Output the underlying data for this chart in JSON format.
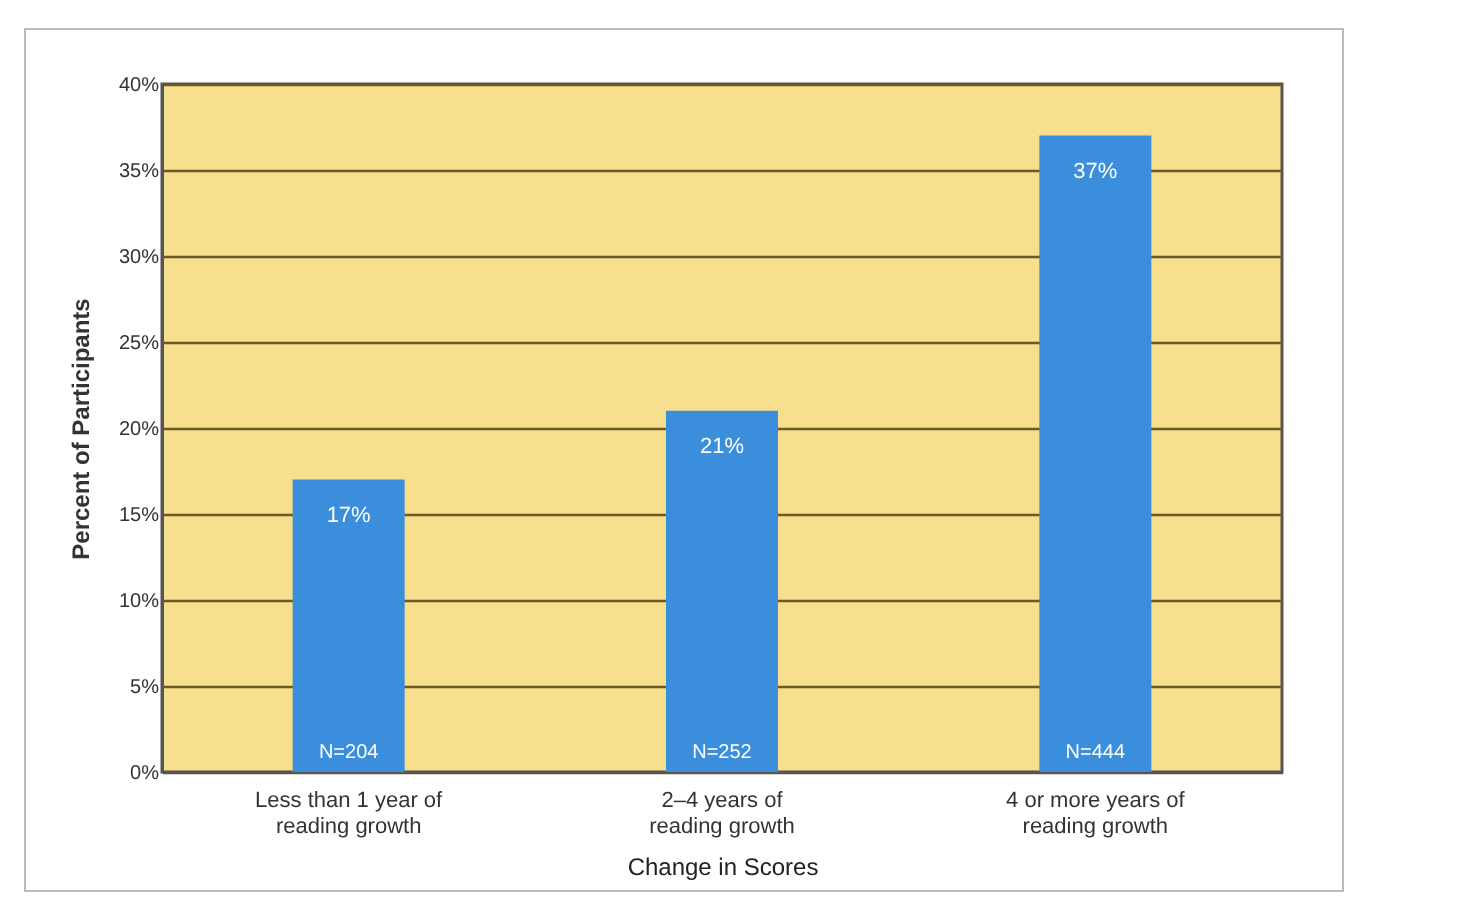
{
  "chart_data": {
    "type": "bar",
    "xlabel": "Change in Scores",
    "ylabel": "Percent of Participants",
    "categories": [
      "Less than 1 year of reading growth",
      "2–4 years of reading growth",
      "4 or more years of reading growth"
    ],
    "values": [
      17,
      21,
      37
    ],
    "color": "#3b8edb",
    "value_labels": [
      "17%",
      "21%",
      "37%"
    ],
    "ylim": [
      0,
      40
    ],
    "yticks": [
      {
        "value": 0,
        "label": "0%"
      },
      {
        "value": 5,
        "label": "5%"
      },
      {
        "value": 10,
        "label": "10%"
      },
      {
        "value": 15,
        "label": "15%"
      },
      {
        "value": 20,
        "label": "20%"
      },
      {
        "value": 25,
        "label": "25%"
      },
      {
        "value": 30,
        "label": "30%"
      },
      {
        "value": 35,
        "label": "35%"
      },
      {
        "value": 40,
        "label": "40%"
      }
    ],
    "grid": "y",
    "annotations": [
      {
        "text": "N=204",
        "x": "Less than 1 year of reading growth",
        "y": 0
      },
      {
        "text": "N=252",
        "x": "2–4 years of reading growth",
        "y": 0
      },
      {
        "text": "N=444",
        "x": "4 or more years of reading growth",
        "y": 0
      }
    ]
  }
}
